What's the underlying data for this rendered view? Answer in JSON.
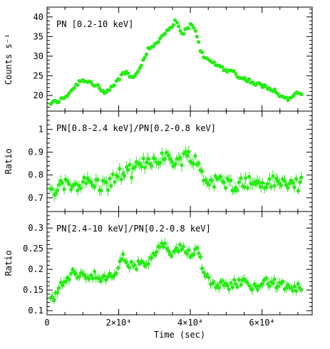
{
  "figure": {
    "x_axis": {
      "label": "Time (sec)",
      "range": [
        0,
        74000
      ],
      "major_ticks": [
        0,
        20000,
        40000,
        60000
      ],
      "tick_labels": [
        "0",
        "2×10⁴",
        "4×10⁴",
        "6×10⁴"
      ],
      "minor_step": 5000
    }
  },
  "chart_data": [
    {
      "type": "scatter",
      "panel_label": "PN [0.2-10 keV]",
      "ylabel": "Counts s⁻¹",
      "ylim": [
        16,
        42.5
      ],
      "y_ticks": [
        20,
        25,
        30,
        35,
        40
      ],
      "y_tick_labels": [
        "20",
        "25",
        "30",
        "35",
        "40"
      ],
      "y_minor_step": 1,
      "x_share": true,
      "color": "#22ee11",
      "noise": 0.5,
      "err": 0.35,
      "keypoints": [
        [
          1000,
          18
        ],
        [
          3000,
          18.5
        ],
        [
          5000,
          19.5
        ],
        [
          7000,
          21.5
        ],
        [
          9000,
          23.5
        ],
        [
          10000,
          24
        ],
        [
          12000,
          23.5
        ],
        [
          13000,
          22.5
        ],
        [
          14000,
          23
        ],
        [
          15000,
          21
        ],
        [
          16000,
          20.5
        ],
        [
          17000,
          21
        ],
        [
          18000,
          22
        ],
        [
          19000,
          23
        ],
        [
          20000,
          24
        ],
        [
          21000,
          25.5
        ],
        [
          22000,
          26
        ],
        [
          23000,
          25
        ],
        [
          24000,
          24.5
        ],
        [
          25000,
          26
        ],
        [
          26000,
          27.5
        ],
        [
          27000,
          29
        ],
        [
          28000,
          31.5
        ],
        [
          29000,
          32
        ],
        [
          30000,
          33
        ],
        [
          31000,
          34
        ],
        [
          32000,
          35
        ],
        [
          33000,
          36
        ],
        [
          34000,
          37
        ],
        [
          35000,
          38
        ],
        [
          36000,
          39
        ],
        [
          37000,
          36.5
        ],
        [
          38000,
          36
        ],
        [
          39000,
          37
        ],
        [
          40000,
          38
        ],
        [
          41000,
          37
        ],
        [
          42000,
          35
        ],
        [
          43000,
          31
        ],
        [
          44000,
          29.5
        ],
        [
          46000,
          28.5
        ],
        [
          48000,
          27.5
        ],
        [
          50000,
          26.5
        ],
        [
          52000,
          26
        ],
        [
          54000,
          24.5
        ],
        [
          56000,
          24
        ],
        [
          58000,
          23
        ],
        [
          60000,
          22.5
        ],
        [
          62000,
          22
        ],
        [
          64000,
          21
        ],
        [
          65000,
          20
        ],
        [
          66000,
          19.5
        ],
        [
          67000,
          19
        ],
        [
          68000,
          19.5
        ],
        [
          69000,
          20
        ],
        [
          70000,
          20.5
        ],
        [
          71000,
          20.5
        ]
      ]
    },
    {
      "type": "scatter",
      "panel_label": "PN[0.8-2.4 keV]/PN[0.2-0.8 keV]",
      "ylabel": "Ratio",
      "ylim": [
        0.64,
        1.08
      ],
      "y_ticks": [
        0.7,
        0.8,
        0.9,
        1
      ],
      "y_tick_labels": [
        "0.7",
        "0.8",
        "0.9",
        "1"
      ],
      "y_minor_step": 0.02,
      "color": "#22ee11",
      "noise": 0.03,
      "err": 0.022,
      "keypoints": [
        [
          1000,
          0.72
        ],
        [
          4000,
          0.75
        ],
        [
          8000,
          0.76
        ],
        [
          12000,
          0.77
        ],
        [
          16000,
          0.75
        ],
        [
          20000,
          0.8
        ],
        [
          24000,
          0.82
        ],
        [
          28000,
          0.86
        ],
        [
          32000,
          0.88
        ],
        [
          36000,
          0.86
        ],
        [
          40000,
          0.89
        ],
        [
          42000,
          0.85
        ],
        [
          44000,
          0.78
        ],
        [
          48000,
          0.77
        ],
        [
          52000,
          0.76
        ],
        [
          56000,
          0.77
        ],
        [
          60000,
          0.76
        ],
        [
          64000,
          0.77
        ],
        [
          68000,
          0.76
        ],
        [
          71000,
          0.76
        ]
      ]
    },
    {
      "type": "scatter",
      "panel_label": "PN[2.4-10 keV]/PN[0.2-0.8 keV]",
      "ylabel": "Ratio",
      "ylim": [
        0.09,
        0.34
      ],
      "y_ticks": [
        0.1,
        0.15,
        0.2,
        0.25,
        0.3
      ],
      "y_tick_labels": [
        "0.1",
        "0.15",
        "0.2",
        "0.25",
        "0.3"
      ],
      "y_minor_step": 0.01,
      "color": "#22ee11",
      "noise": 0.011,
      "err": 0.01,
      "keypoints": [
        [
          1000,
          0.12
        ],
        [
          3000,
          0.15
        ],
        [
          5000,
          0.17
        ],
        [
          7000,
          0.19
        ],
        [
          9000,
          0.19
        ],
        [
          11000,
          0.18
        ],
        [
          13000,
          0.19
        ],
        [
          15000,
          0.17
        ],
        [
          17000,
          0.18
        ],
        [
          19000,
          0.19
        ],
        [
          21000,
          0.23
        ],
        [
          23000,
          0.21
        ],
        [
          26000,
          0.21
        ],
        [
          29000,
          0.22
        ],
        [
          31000,
          0.25
        ],
        [
          33000,
          0.26
        ],
        [
          35000,
          0.23
        ],
        [
          37000,
          0.25
        ],
        [
          40000,
          0.24
        ],
        [
          42000,
          0.25
        ],
        [
          44000,
          0.19
        ],
        [
          46000,
          0.17
        ],
        [
          50000,
          0.16
        ],
        [
          54000,
          0.17
        ],
        [
          58000,
          0.16
        ],
        [
          62000,
          0.17
        ],
        [
          66000,
          0.16
        ],
        [
          70000,
          0.155
        ],
        [
          71000,
          0.14
        ]
      ]
    }
  ]
}
